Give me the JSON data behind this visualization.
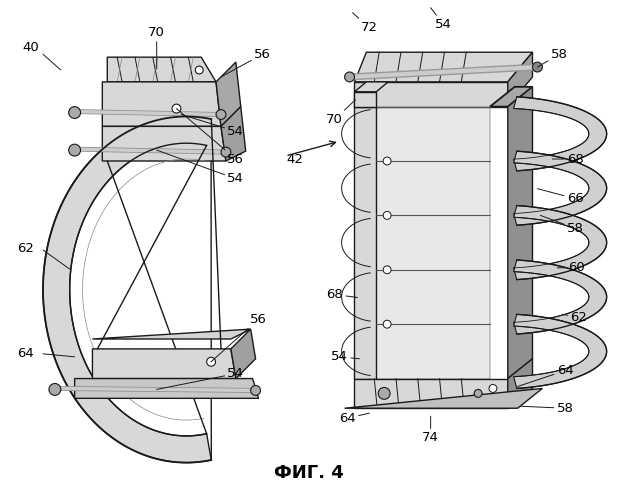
{
  "title": "ФИГ. 4",
  "title_fontsize": 13,
  "title_fontweight": "bold",
  "background_color": "#ffffff",
  "line_color": "#1a1a1a",
  "line_width": 1.0,
  "label_fontsize": 9.5,
  "fig_width": 6.18,
  "fig_height": 5.0,
  "gray_fill": "#b8b8b8",
  "light_gray": "#d8d8d8",
  "dark_gray": "#888888"
}
